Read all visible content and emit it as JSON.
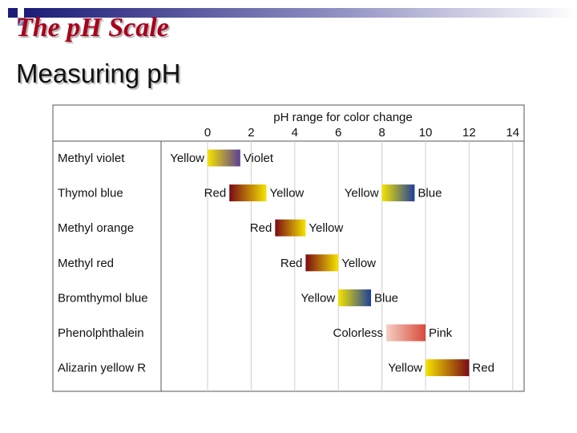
{
  "slide": {
    "title": "The pH Scale",
    "subtitle": "Measuring pH"
  },
  "chart_data": {
    "type": "range",
    "title": "pH range for color change",
    "xlim": [
      -2.5,
      14.5
    ],
    "x_ticks": [
      0,
      2,
      4,
      6,
      8,
      10,
      12,
      14
    ],
    "grid": true,
    "indicators": [
      {
        "name": "Methyl violet",
        "ranges": [
          {
            "from": 0.0,
            "to": 1.5,
            "low_label": "Yellow",
            "high_label": "Violet",
            "low_color": "#f5e400",
            "high_color": "#5a3f95"
          }
        ]
      },
      {
        "name": "Thymol blue",
        "ranges": [
          {
            "from": 1.0,
            "to": 2.7,
            "low_label": "Red",
            "high_label": "Yellow",
            "low_color": "#7a0a14",
            "high_color": "#f5e400"
          },
          {
            "from": 8.0,
            "to": 9.5,
            "low_label": "Yellow",
            "high_label": "Blue",
            "low_color": "#f5e400",
            "high_color": "#1e3f9a"
          }
        ]
      },
      {
        "name": "Methyl orange",
        "ranges": [
          {
            "from": 3.1,
            "to": 4.5,
            "low_label": "Red",
            "high_label": "Yellow",
            "low_color": "#7a0a14",
            "high_color": "#f5e400"
          }
        ]
      },
      {
        "name": "Methyl red",
        "ranges": [
          {
            "from": 4.5,
            "to": 6.0,
            "low_label": "Red",
            "high_label": "Yellow",
            "low_color": "#7a0a14",
            "high_color": "#f5e400"
          }
        ]
      },
      {
        "name": "Bromthymol blue",
        "ranges": [
          {
            "from": 6.0,
            "to": 7.5,
            "low_label": "Yellow",
            "high_label": "Blue",
            "low_color": "#f5e400",
            "high_color": "#1e3f9a"
          }
        ]
      },
      {
        "name": "Phenolphthalein",
        "ranges": [
          {
            "from": 8.2,
            "to": 10.0,
            "low_label": "Colorless",
            "high_label": "Pink",
            "low_color": "#f6cfc4",
            "high_color": "#d64a3a"
          }
        ]
      },
      {
        "name": "Alizarin yellow R",
        "ranges": [
          {
            "from": 10.0,
            "to": 12.0,
            "low_label": "Yellow",
            "high_label": "Red",
            "low_color": "#f5e400",
            "high_color": "#7a0a14"
          }
        ]
      }
    ]
  }
}
